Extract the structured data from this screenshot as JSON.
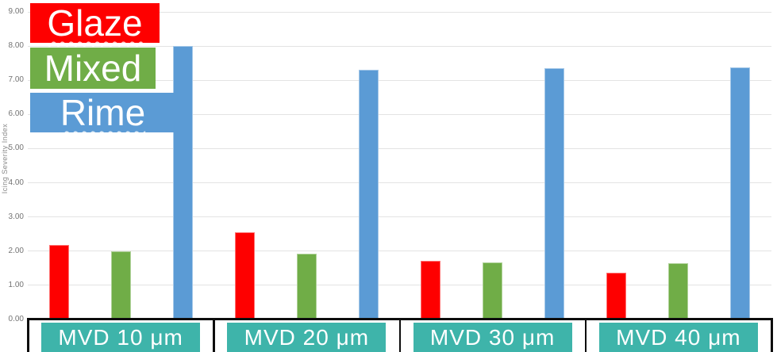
{
  "y_axis": {
    "title": "Icing Severity Index",
    "ticks": [
      "9.00",
      "8.00",
      "7.00",
      "6.00",
      "5.00",
      "4.00",
      "3.00",
      "2.00",
      "1.00",
      "0.00"
    ]
  },
  "legend": {
    "position": "top-left",
    "squiggle_items": [
      "Glaze",
      "Rime"
    ]
  },
  "category_style": {
    "bg": "#3eb4aa",
    "text_color": "#ffffff"
  },
  "chart_data": {
    "type": "bar",
    "title": "",
    "xlabel": "",
    "ylabel": "Icing Severity Index",
    "ylim": [
      0,
      9
    ],
    "grid": true,
    "legend_position": "top-left",
    "categories": [
      "MVD 10 μm",
      "MVD 20 μm",
      "MVD 30 μm",
      "MVD 40 μm"
    ],
    "series": [
      {
        "name": "Glaze",
        "color": "#fe0000",
        "values": [
          2.18,
          2.55,
          1.72,
          1.38
        ]
      },
      {
        "name": "Mixed",
        "color": "#70ad47",
        "values": [
          2.0,
          1.93,
          1.67,
          1.65
        ]
      },
      {
        "name": "Rime",
        "color": "#5b9bd5",
        "values": [
          8.0,
          7.3,
          7.35,
          7.38
        ]
      }
    ]
  }
}
